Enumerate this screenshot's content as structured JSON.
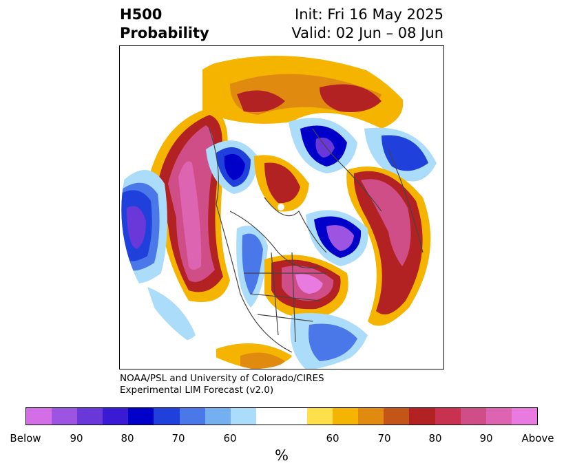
{
  "header": {
    "title_line1": "H500",
    "title_line2": "Probability",
    "init_line": "Init: Fri 16 May 2025",
    "valid_line": "Valid: 02 Jun – 08 Jun"
  },
  "credit": {
    "line1": "NOAA/PSL and University of Colorado/CIRES",
    "line2": "Experimental LIM Forecast (v2.0)"
  },
  "colorbar": {
    "colors": [
      "#d46ee6",
      "#9d54e0",
      "#6a38d8",
      "#3a1ad2",
      "#0000c8",
      "#2040dc",
      "#4a78e8",
      "#74b0f0",
      "#abdcfa",
      "#ffffff",
      "#ffffff",
      "#ffe04a",
      "#f4b400",
      "#e08a10",
      "#c45518",
      "#b22222",
      "#c83250",
      "#d04e88",
      "#dc64b0",
      "#e87ae0"
    ],
    "tick_labels": [
      "Below",
      "90",
      "80",
      "70",
      "60",
      "60",
      "70",
      "80",
      "90",
      "Above"
    ],
    "unit": "%"
  }
}
